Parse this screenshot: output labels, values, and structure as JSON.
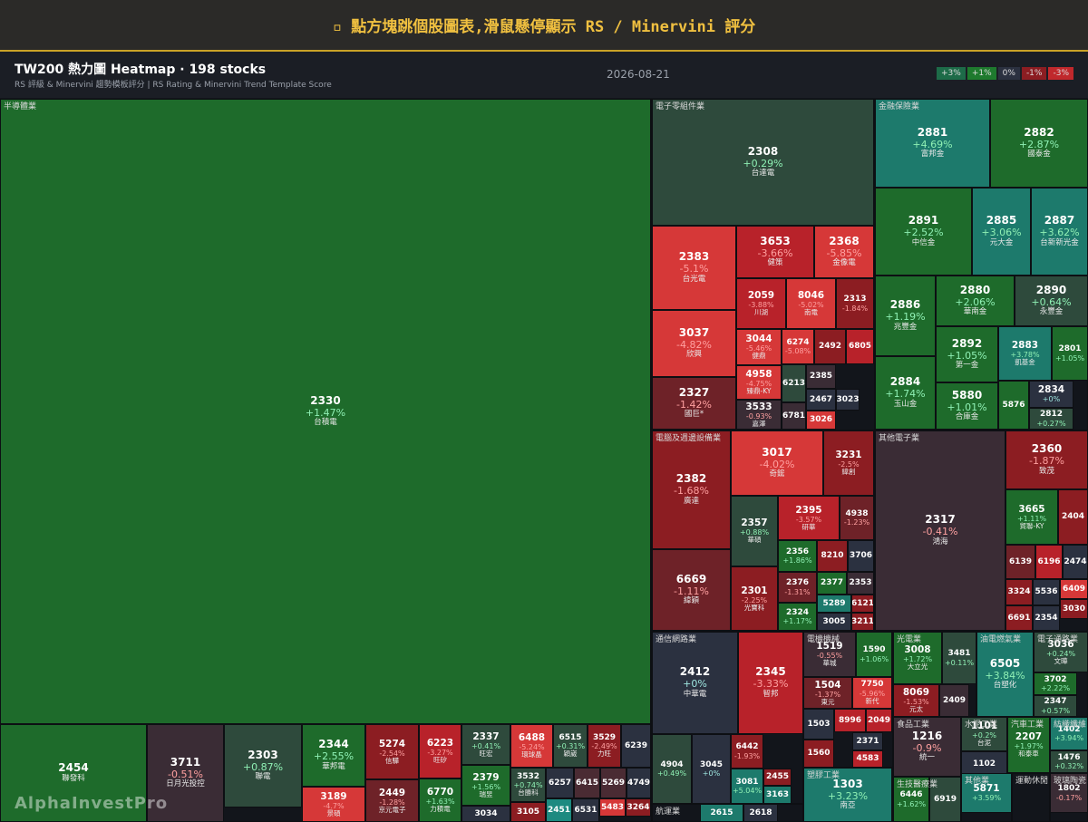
{
  "banner": "▫ 點方塊跳個股圖表,滑鼠懸停顯示 RS / Minervini 評分",
  "header": {
    "title": "TW200 熱力圖 Heatmap · 198 stocks",
    "subtitle": "RS 評級 & Minervini 趨勢模板評分 | RS Rating & Minervini Trend Template Score",
    "date": "2026-08-21",
    "legend": [
      {
        "label": "+3%",
        "color": "#1d6b48"
      },
      {
        "label": "+1%",
        "color": "#1e7a2e"
      },
      {
        "label": "0%",
        "color": "#2b3140"
      },
      {
        "label": "-1%",
        "color": "#8c1d22"
      },
      {
        "label": "-3%",
        "color": "#c0282c"
      }
    ]
  },
  "watermark": "AlphaInvestPro",
  "sectors": [
    {
      "name": "半導體業",
      "tiles": [
        {
          "code": "2330",
          "change": "+1.47%",
          "name": "台積電"
        },
        {
          "code": "2454",
          "name": "聯發科",
          "color": "#1e6b2b"
        },
        {
          "code": "3711",
          "change": "-0.51%",
          "name": "日月光投控"
        },
        {
          "code": "2303",
          "change": "+0.87%",
          "name": "聯電"
        },
        {
          "code": "2344",
          "change": "+2.55%",
          "name": "華邦電"
        },
        {
          "code": "3189",
          "change": "-4.7%",
          "name": "景碩"
        },
        {
          "code": "5274",
          "change": "-2.54%",
          "name": "信驊"
        },
        {
          "code": "2449",
          "change": "-1.28%",
          "name": "京元電子"
        },
        {
          "code": "6223",
          "change": "-3.27%",
          "name": "旺矽"
        },
        {
          "code": "6770",
          "change": "+1.63%",
          "name": "力積電"
        },
        {
          "code": "2337",
          "change": "+0.41%",
          "name": "旺宏"
        },
        {
          "code": "2379",
          "change": "+1.56%",
          "name": "瑞昱"
        },
        {
          "code": "3034",
          "color": "#2b3140"
        },
        {
          "code": "6488",
          "change": "-5.24%",
          "name": "環球晶"
        },
        {
          "code": "6515",
          "change": "+0.31%",
          "name": "穎崴"
        },
        {
          "code": "3529",
          "change": "-2.49%",
          "name": "力旺"
        },
        {
          "code": "6239",
          "color": "#2b3140"
        },
        {
          "code": "3532",
          "change": "+0.74%",
          "name": "台勝科"
        },
        {
          "code": "6257",
          "color": "#2b3140"
        },
        {
          "code": "6415",
          "color": "#4a2b33"
        },
        {
          "code": "5269",
          "color": "#4a2b33"
        },
        {
          "code": "4749",
          "color": "#2b3140"
        },
        {
          "code": "3105",
          "color": "#8c1d22"
        },
        {
          "code": "2451",
          "color": "#1d8a80"
        },
        {
          "code": "6531",
          "color": "#2b3140"
        },
        {
          "code": "5483",
          "color": "#d63838"
        },
        {
          "code": "3264",
          "color": "#8c1d22"
        }
      ]
    },
    {
      "name": "電子零組件業",
      "tiles": [
        {
          "code": "2308",
          "change": "+0.29%",
          "name": "台達電"
        },
        {
          "code": "2383",
          "change": "-5.1%",
          "name": "台光電"
        },
        {
          "code": "3037",
          "change": "-4.82%",
          "name": "欣興"
        },
        {
          "code": "2327",
          "change": "-1.42%",
          "name": "國巨*"
        },
        {
          "code": "3653",
          "change": "-3.66%",
          "name": "健策"
        },
        {
          "code": "2368",
          "change": "-5.85%",
          "name": "金像電"
        },
        {
          "code": "2059",
          "change": "-3.88%",
          "name": "川湖"
        },
        {
          "code": "8046",
          "change": "-5.02%",
          "name": "南電"
        },
        {
          "code": "2313",
          "change": "-1.84%"
        },
        {
          "code": "3044",
          "change": "-5.46%",
          "name": "健鼎"
        },
        {
          "code": "4958",
          "change": "-4.75%",
          "name": "臻鼎-KY"
        },
        {
          "code": "3533",
          "change": "-0.93%",
          "name": "嘉澤"
        },
        {
          "code": "6274",
          "change": "-5.08%"
        },
        {
          "code": "2492",
          "color": "#8c1d22"
        },
        {
          "code": "6805",
          "color": "#b8222a"
        },
        {
          "code": "6213",
          "color": "#2e4a3c"
        },
        {
          "code": "2385",
          "color": "#3a2c35"
        },
        {
          "code": "2467",
          "color": "#2b3140"
        },
        {
          "code": "3023",
          "color": "#2b3140"
        },
        {
          "code": "6781",
          "color": "#3a2c35"
        },
        {
          "code": "3026",
          "color": "#d63838"
        }
      ]
    },
    {
      "name": "金融保險業",
      "tiles": [
        {
          "code": "2881",
          "change": "+4.69%",
          "name": "富邦金"
        },
        {
          "code": "2882",
          "change": "+2.87%",
          "name": "國泰金"
        },
        {
          "code": "2891",
          "change": "+2.52%",
          "name": "中信金"
        },
        {
          "code": "2885",
          "change": "+3.06%",
          "name": "元大金"
        },
        {
          "code": "2887",
          "change": "+3.62%",
          "name": "台新新光金"
        },
        {
          "code": "2886",
          "change": "+1.19%",
          "name": "兆豐金"
        },
        {
          "code": "2884",
          "change": "+1.74%",
          "name": "玉山金"
        },
        {
          "code": "2880",
          "change": "+2.06%",
          "name": "華南金"
        },
        {
          "code": "2890",
          "change": "+0.64%",
          "name": "永豐金"
        },
        {
          "code": "2892",
          "change": "+1.05%",
          "name": "第一金"
        },
        {
          "code": "5880",
          "change": "+1.01%",
          "name": "合庫金"
        },
        {
          "code": "2883",
          "change": "+3.78%",
          "name": "凱基金"
        },
        {
          "code": "2801",
          "change": "+1.05%"
        },
        {
          "code": "5876",
          "color": "#1e6b2b"
        },
        {
          "code": "2834",
          "change": "+0%"
        },
        {
          "code": "2812",
          "change": "+0.27%"
        }
      ]
    },
    {
      "name": "電腦及週邊設備業",
      "tiles": [
        {
          "code": "2382",
          "change": "-1.68%",
          "name": "廣達"
        },
        {
          "code": "6669",
          "change": "-1.11%",
          "name": "緯穎"
        },
        {
          "code": "3017",
          "change": "-4.02%",
          "name": "奇鋐"
        },
        {
          "code": "3231",
          "change": "-2.5%",
          "name": "緯創"
        },
        {
          "code": "2357",
          "change": "+0.88%",
          "name": "華碩"
        },
        {
          "code": "2301",
          "change": "-2.25%",
          "name": "光寶科"
        },
        {
          "code": "2395",
          "change": "-3.57%",
          "name": "研華"
        },
        {
          "code": "4938",
          "change": "-1.23%"
        },
        {
          "code": "2356",
          "change": "+1.86%"
        },
        {
          "code": "8210",
          "color": "#8c1d22"
        },
        {
          "code": "3706",
          "color": "#2b3140"
        },
        {
          "code": "2376",
          "change": "-1.31%"
        },
        {
          "code": "2377",
          "color": "#1e6b2b"
        },
        {
          "code": "2353",
          "color": "#3a2c35"
        },
        {
          "code": "5289",
          "color": "#1d7a6c"
        },
        {
          "code": "6121",
          "color": "#8c1d22"
        },
        {
          "code": "2324",
          "change": "+1.17%"
        },
        {
          "code": "3005",
          "color": "#2b3140"
        },
        {
          "code": "3211",
          "color": "#8c1d22"
        }
      ]
    },
    {
      "name": "其他電子業",
      "tiles": [
        {
          "code": "2317",
          "change": "-0.41%",
          "name": "鴻海"
        },
        {
          "code": "2360",
          "change": "-1.87%",
          "name": "致茂"
        },
        {
          "code": "3665",
          "change": "+1.11%",
          "name": "貿聯-KY"
        },
        {
          "code": "2404",
          "color": "#8c1d22"
        },
        {
          "code": "6139",
          "color": "#6e2228"
        },
        {
          "code": "6196",
          "color": "#b8222a"
        },
        {
          "code": "2474",
          "color": "#2b3140"
        },
        {
          "code": "3324",
          "color": "#8c1d22"
        },
        {
          "code": "5536",
          "color": "#2b3140"
        },
        {
          "code": "6409",
          "color": "#d63838"
        },
        {
          "code": "6691",
          "color": "#8c1d22"
        },
        {
          "code": "2354",
          "color": "#2b3140"
        },
        {
          "code": "3030",
          "color": "#8c1d22"
        }
      ]
    },
    {
      "name": "通信網路業",
      "tiles": [
        {
          "code": "2412",
          "change": "+0%",
          "name": "中華電"
        },
        {
          "code": "2345",
          "change": "-3.33%",
          "name": "智邦"
        },
        {
          "code": "4904",
          "change": "+0.49%"
        },
        {
          "code": "3045",
          "change": "+0%"
        },
        {
          "code": "6442",
          "change": "-1.93%"
        },
        {
          "code": "3081",
          "change": "+5.04%"
        },
        {
          "code": "2455",
          "color": "#8c1d22"
        },
        {
          "code": "3163",
          "color": "#1d7a6c"
        }
      ]
    },
    {
      "name": "航運業",
      "tiles": [
        {
          "code": "2615",
          "color": "#1d7a6c"
        },
        {
          "code": "2618",
          "color": "#2b3140"
        }
      ]
    },
    {
      "name": "電機機械",
      "tiles": [
        {
          "code": "1519",
          "change": "-0.55%",
          "name": "華城"
        },
        {
          "code": "1590",
          "change": "+1.06%"
        },
        {
          "code": "1504",
          "change": "-1.37%",
          "name": "東元"
        },
        {
          "code": "7750",
          "change": "-5.96%",
          "name": "新代"
        },
        {
          "code": "1503",
          "color": "#2b3140"
        },
        {
          "code": "8996",
          "color": "#b8222a"
        },
        {
          "code": "2049",
          "color": "#b8222a"
        },
        {
          "code": "1560",
          "color": "#8c1d22"
        },
        {
          "code": "2371",
          "color": "#2b3140"
        },
        {
          "code": "4583",
          "color": "#b8222a"
        }
      ]
    },
    {
      "name": "塑膠工業",
      "tiles": [
        {
          "code": "1303",
          "change": "+3.23%",
          "name": "南亞"
        }
      ]
    },
    {
      "name": "光電業",
      "tiles": [
        {
          "code": "3008",
          "change": "+1.72%",
          "name": "大立光"
        },
        {
          "code": "3481",
          "change": "+0.11%"
        },
        {
          "code": "8069",
          "change": "-1.53%",
          "name": "元太"
        },
        {
          "code": "2409",
          "color": "#3a2c35"
        }
      ]
    },
    {
      "name": "油電燃氣業",
      "tiles": [
        {
          "code": "6505",
          "change": "+3.84%",
          "name": "台塑化"
        }
      ]
    },
    {
      "name": "電子通路業",
      "tiles": [
        {
          "code": "3036",
          "change": "+0.24%",
          "name": "文曄"
        },
        {
          "code": "3702",
          "change": "+2.22%"
        },
        {
          "code": "2347",
          "change": "+0.57%"
        }
      ]
    },
    {
      "name": "食品工業",
      "tiles": [
        {
          "code": "1216",
          "change": "-0.9%",
          "name": "統一"
        }
      ]
    },
    {
      "name": "水泥工業",
      "tiles": [
        {
          "code": "1101",
          "change": "+0.2%",
          "name": "台泥"
        },
        {
          "code": "1102",
          "color": "#2b3140"
        }
      ]
    },
    {
      "name": "汽車工業",
      "tiles": [
        {
          "code": "2207",
          "change": "+1.97%",
          "name": "和泰車"
        }
      ]
    },
    {
      "name": "紡織纖維",
      "tiles": [
        {
          "code": "1402",
          "change": "+3.94%"
        },
        {
          "code": "1476",
          "change": "+0.32%"
        }
      ]
    },
    {
      "name": "生技醫療業",
      "tiles": [
        {
          "code": "6446",
          "change": "+1.62%"
        },
        {
          "code": "6919",
          "color": "#2e4a3c"
        }
      ]
    },
    {
      "name": "其他業",
      "tiles": [
        {
          "code": "5871",
          "change": "+3.59%"
        }
      ]
    },
    {
      "name": "運動休閒",
      "tiles": []
    },
    {
      "name": "玻璃陶瓷",
      "tiles": [
        {
          "code": "1802",
          "change": "-0.17%"
        }
      ]
    }
  ]
}
